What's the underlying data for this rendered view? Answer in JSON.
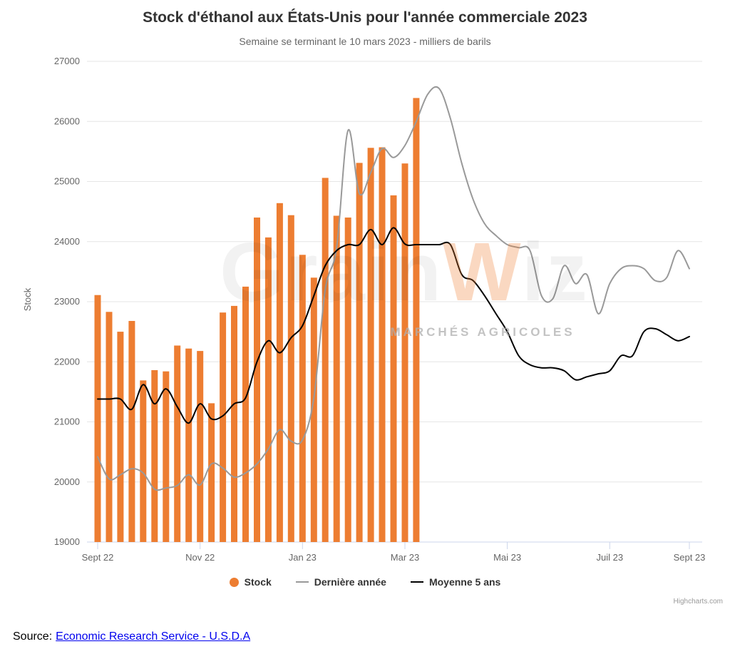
{
  "chart_data": {
    "type": "combo",
    "title": "Stock d'éthanol aux États-Unis pour l'année commerciale 2023",
    "subtitle": "Semaine se terminant le 10 mars 2023 - milliers de barils",
    "ylabel": "Stock",
    "ylim": [
      19000,
      27000
    ],
    "ytick_step": 1000,
    "yticks": [
      19000,
      20000,
      21000,
      22000,
      23000,
      24000,
      25000,
      26000,
      27000
    ],
    "x_unit": "week_index",
    "x_range": [
      0,
      52
    ],
    "xticks": [
      {
        "w": 0,
        "label": "Sept 22"
      },
      {
        "w": 9,
        "label": "Nov 22"
      },
      {
        "w": 18,
        "label": "Jan 23"
      },
      {
        "w": 27,
        "label": "Mar 23"
      },
      {
        "w": 36,
        "label": "Mai 23"
      },
      {
        "w": 45,
        "label": "Juil 23"
      },
      {
        "w": 52,
        "label": "Sept 23"
      }
    ],
    "grid": true,
    "grid_color": "#e6e6e6",
    "axis_line_color": "#ccd6eb",
    "axis_label_color": "#666666",
    "legend_position": "bottom",
    "series": [
      {
        "name": "Stock",
        "type": "column",
        "color": "#ED7D31",
        "x_start_week": 0,
        "values": [
          23110,
          22830,
          22500,
          22680,
          21690,
          21860,
          21840,
          22270,
          22220,
          22180,
          21310,
          22820,
          22930,
          23250,
          24400,
          24070,
          24640,
          24440,
          23780,
          23400,
          25060,
          24430,
          24400,
          25310,
          25560,
          25570,
          24770,
          25300,
          26390
        ]
      },
      {
        "name": "Dernière année",
        "type": "spline",
        "color": "#999999",
        "values": [
          20420,
          20050,
          20120,
          20220,
          20150,
          19880,
          19900,
          19940,
          20120,
          19950,
          20300,
          20230,
          20080,
          20150,
          20300,
          20550,
          20870,
          20680,
          20700,
          21400,
          23200,
          23900,
          25850,
          24800,
          25150,
          25550,
          25400,
          25600,
          26000,
          26450,
          26550,
          26050,
          25300,
          24700,
          24300,
          24100,
          23950,
          23900,
          23850,
          23100,
          23050,
          23600,
          23300,
          23450,
          22800,
          23300,
          23550,
          23600,
          23550,
          23350,
          23400,
          23850,
          23550
        ]
      },
      {
        "name": "Moyenne 5 ans",
        "type": "spline",
        "color": "#000000",
        "values": [
          21380,
          21380,
          21380,
          21210,
          21620,
          21300,
          21550,
          21250,
          20980,
          21300,
          21050,
          21100,
          21300,
          21400,
          22000,
          22350,
          22150,
          22400,
          22600,
          23100,
          23600,
          23850,
          23950,
          23950,
          24200,
          23950,
          24230,
          23960,
          23950,
          23950,
          23950,
          23950,
          23450,
          23350,
          23100,
          22800,
          22500,
          22100,
          21950,
          21900,
          21900,
          21850,
          21700,
          21750,
          21800,
          21850,
          22100,
          22100,
          22500,
          22550,
          22450,
          22350,
          22420
        ]
      }
    ]
  },
  "credits": "Highcharts.com",
  "watermark": {
    "brand_prefix": "Grain",
    "brand_accent": "W",
    "brand_suffix": "iz",
    "tagline": "MARCHÉS AGRICOLES"
  },
  "source": {
    "label": "Source:",
    "link_text": "Economic Research Service - U.S.D.A"
  }
}
